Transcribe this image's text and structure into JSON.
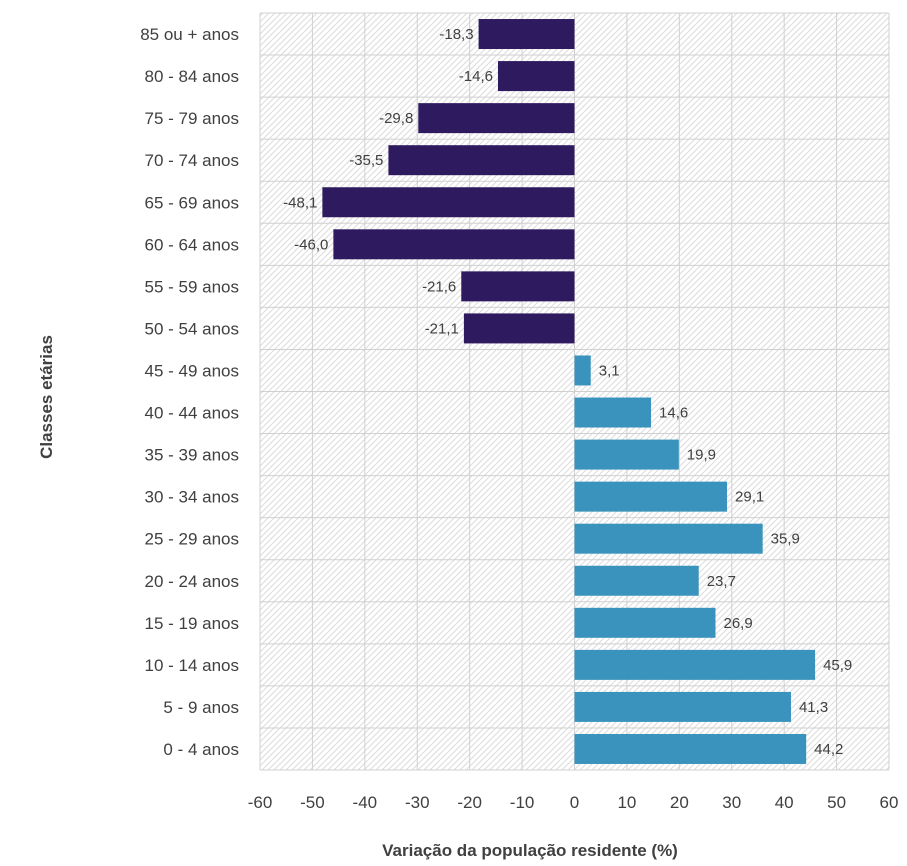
{
  "chart_data": {
    "type": "bar",
    "orientation": "horizontal",
    "xlabel": "Variação da população residente (%)",
    "ylabel": "Classes etárias",
    "xlim": [
      -60,
      60
    ],
    "xticks": [
      "-60",
      "-50",
      "-40",
      "-30",
      "-20",
      "-10",
      "0",
      "10",
      "20",
      "30",
      "40",
      "50",
      "60"
    ],
    "grid": true,
    "categories": [
      "85 ou + anos",
      "80 - 84 anos",
      "75 - 79 anos",
      "70 - 74 anos",
      "65 - 69 anos",
      "60 - 64 anos",
      "55 - 59 anos",
      "50 - 54 anos",
      "45 - 49 anos",
      "40 - 44 anos",
      "35 - 39 anos",
      "30 - 34 anos",
      "25 - 29 anos",
      "20 - 24 anos",
      "15 - 19 anos",
      "10 - 14 anos",
      "5 - 9 anos",
      "0 - 4 anos"
    ],
    "values": [
      -18.3,
      -14.6,
      -29.8,
      -35.5,
      -48.1,
      -46.0,
      -21.6,
      -21.1,
      3.1,
      14.6,
      19.9,
      29.1,
      35.9,
      23.7,
      26.9,
      45.9,
      41.3,
      44.2
    ],
    "value_labels": [
      "-18,3",
      "-14,6",
      "-29,8",
      "-35,5",
      "-48,1",
      "-46,0",
      "-21,6",
      "-21,1",
      "3,1",
      "14,6",
      "19,9",
      "29,1",
      "35,9",
      "23,7",
      "26,9",
      "45,9",
      "41,3",
      "44,2"
    ],
    "colors": {
      "negative": "#2e1a5e",
      "positive": "#3a93bd",
      "grid": "#d0d0d0"
    }
  }
}
